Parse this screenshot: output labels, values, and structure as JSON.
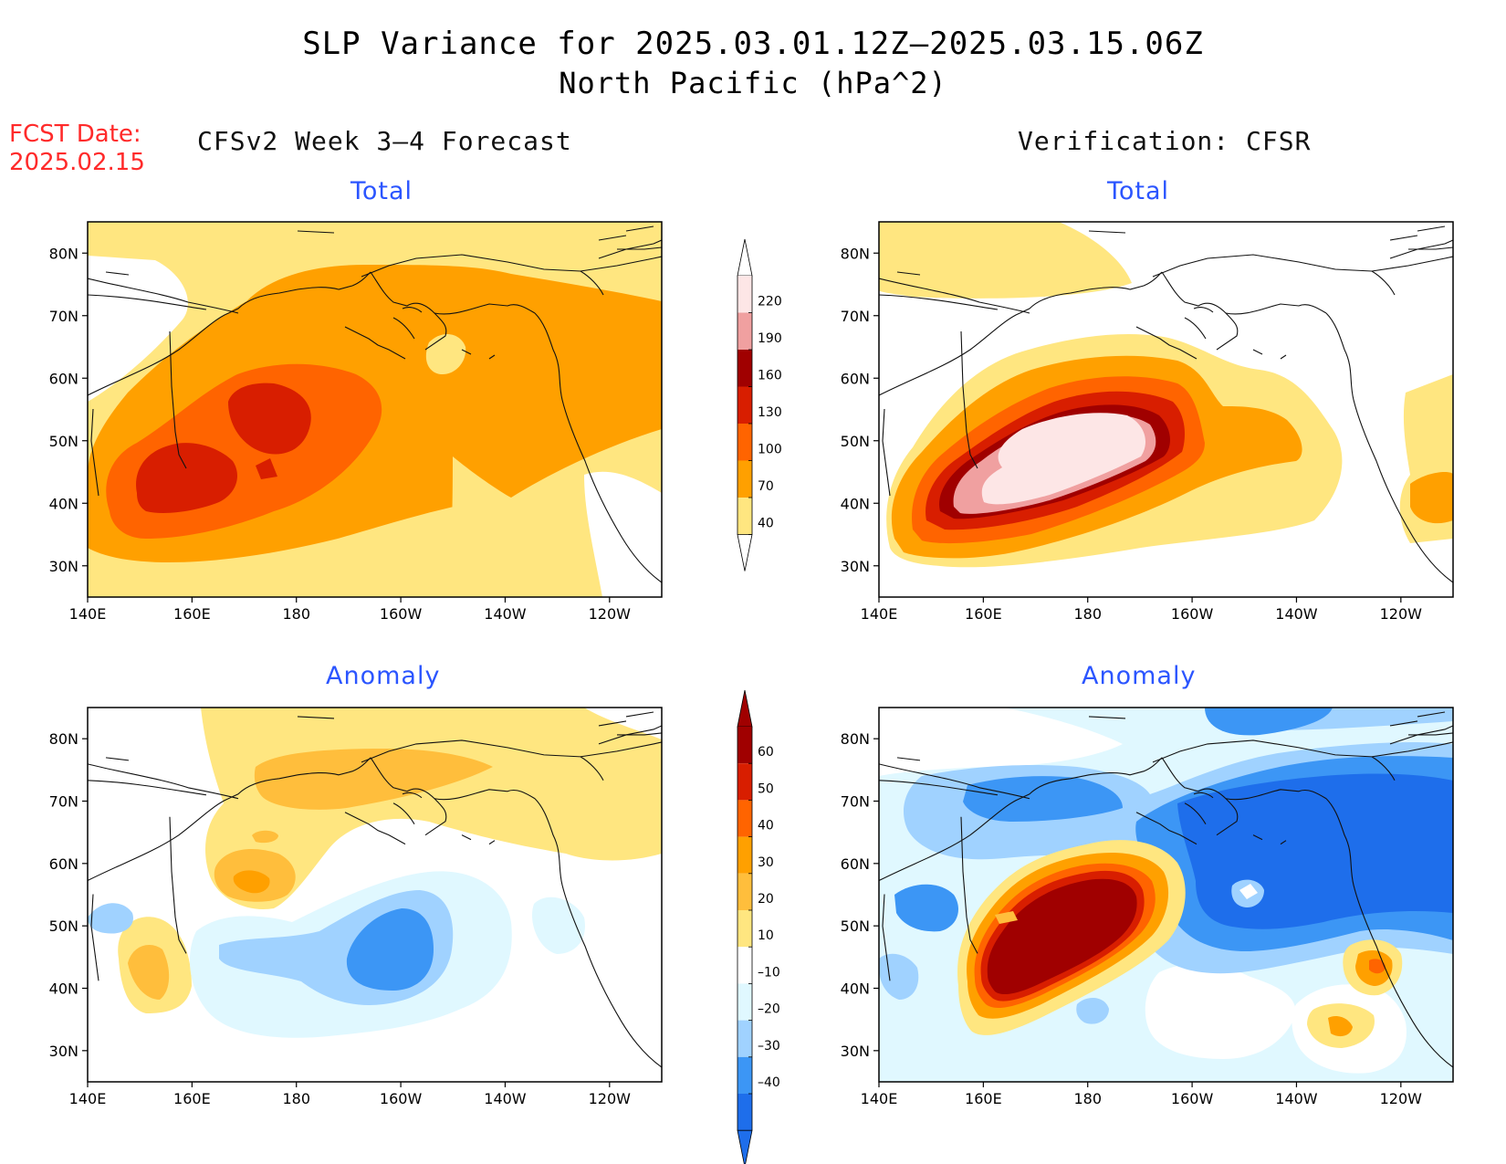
{
  "header": {
    "title": "SLP Variance for 2025.03.01.12Z–2025.03.15.06Z",
    "subtitle": "North Pacific (hPa^2)",
    "fcst_date_label": "FCST Date:",
    "fcst_date": "2025.02.15",
    "left_column": "CFSv2 Week 3–4 Forecast",
    "right_column": "Verification: CFSR"
  },
  "chart_data": [
    {
      "type": "heatmap",
      "panel": "forecast-total",
      "title": "Total",
      "x_ticks": [
        "140E",
        "160E",
        "180",
        "160W",
        "140W",
        "120W"
      ],
      "y_ticks": [
        "80N",
        "70N",
        "60N",
        "50N",
        "40N",
        "30N"
      ],
      "xlim": [
        140,
        250
      ],
      "ylim": [
        25,
        85
      ],
      "peak_value_range": [
        130,
        160
      ],
      "peak_location": {
        "lon": 163,
        "lat": 45
      }
    },
    {
      "type": "heatmap",
      "panel": "verification-total",
      "title": "Total",
      "x_ticks": [
        "140E",
        "160E",
        "180",
        "160W",
        "140W",
        "120W"
      ],
      "y_ticks": [
        "80N",
        "70N",
        "60N",
        "50N",
        "40N",
        "30N"
      ],
      "xlim": [
        140,
        250
      ],
      "ylim": [
        25,
        85
      ],
      "peak_value_range": [
        220,
        250
      ],
      "peak_location": {
        "lon": 180,
        "lat": 50
      }
    },
    {
      "type": "heatmap",
      "panel": "forecast-anomaly",
      "title": "Anomaly",
      "x_ticks": [
        "140E",
        "160E",
        "180",
        "160W",
        "140W",
        "120W"
      ],
      "y_ticks": [
        "80N",
        "70N",
        "60N",
        "50N",
        "40N",
        "30N"
      ],
      "xlim": [
        140,
        250
      ],
      "ylim": [
        25,
        85
      ],
      "max_value_range": [
        20,
        30
      ],
      "min_value_range": [
        -40,
        -30
      ]
    },
    {
      "type": "heatmap",
      "panel": "verification-anomaly",
      "title": "Anomaly",
      "x_ticks": [
        "140E",
        "160E",
        "180",
        "160W",
        "140W",
        "120W"
      ],
      "y_ticks": [
        "80N",
        "70N",
        "60N",
        "50N",
        "40N",
        "30N"
      ],
      "xlim": [
        140,
        250
      ],
      "ylim": [
        25,
        85
      ],
      "max_value_range": [
        60,
        70
      ],
      "min_value_range": [
        -40,
        -30
      ]
    }
  ],
  "colorbars": {
    "total": {
      "labels": [
        "220",
        "190",
        "160",
        "130",
        "100",
        "70",
        "40"
      ],
      "colors": [
        "#fde6e6",
        "#f0a0a0",
        "#a00000",
        "#d81e00",
        "#ff6400",
        "#ffa000",
        "#ffe680"
      ]
    },
    "anomaly": {
      "labels": [
        "60",
        "50",
        "40",
        "30",
        "20",
        "10",
        "–10",
        "–20",
        "–30",
        "–40"
      ],
      "colors": [
        "#a00000",
        "#d81e00",
        "#ff6400",
        "#ffa000",
        "#ffbe3c",
        "#ffe680",
        "#ffffff",
        "#e0f8ff",
        "#a0d2ff",
        "#3c96f5",
        "#1e6eeb"
      ]
    }
  }
}
